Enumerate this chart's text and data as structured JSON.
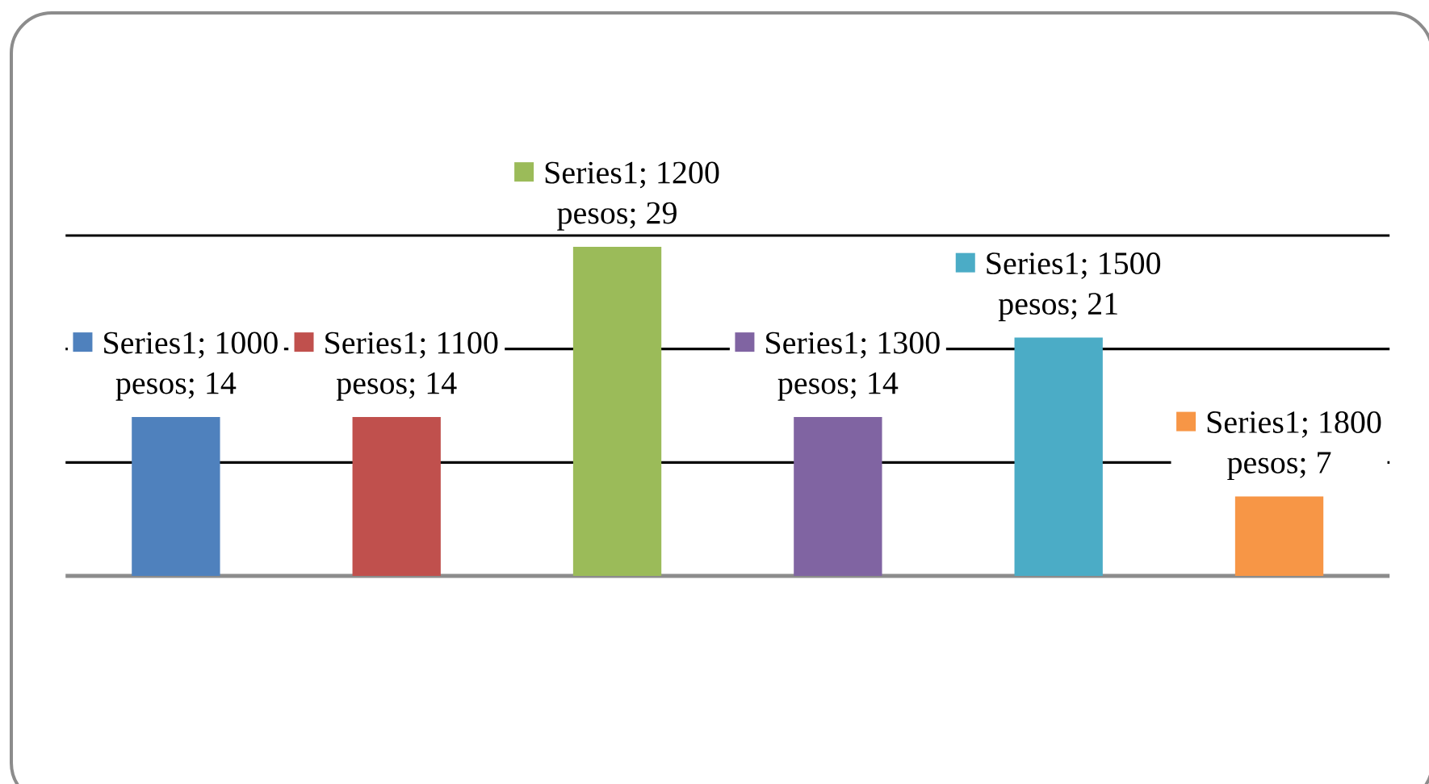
{
  "chart_data": {
    "type": "bar",
    "categories": [
      null,
      null,
      null,
      null,
      null,
      null
    ],
    "values": [
      14,
      14,
      29,
      14,
      21,
      7
    ],
    "colors": [
      "#4f81bd",
      "#c0504d",
      "#9bbb59",
      "#8064a2",
      "#4bacc6",
      "#f79646"
    ],
    "value_labels": [
      "Series1; 1000 pesos; 14",
      "Series1; 1100 pesos; 14",
      "Series1; 1200 pesos; 29",
      "Series1; 1300 pesos; 14",
      "Series1; 1500 pesos; 21",
      "Series1; 1800 pesos; 7"
    ],
    "ylim": [
      0,
      30
    ],
    "yticks": [
      {
        "value": 10,
        "label": null
      },
      {
        "value": 20,
        "label": null
      },
      {
        "value": 30,
        "label": null
      }
    ],
    "grid": "y"
  }
}
